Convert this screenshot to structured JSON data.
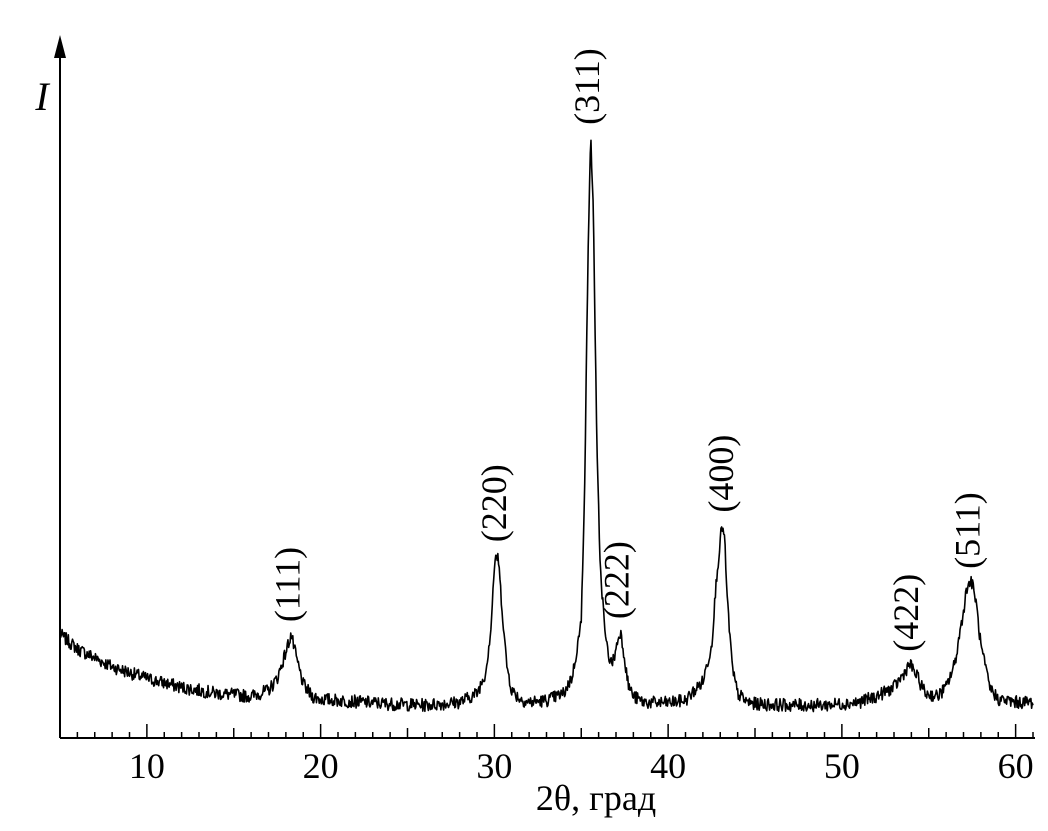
{
  "chart_data": {
    "type": "line",
    "title": "",
    "xlabel": "2θ, град",
    "ylabel": "I",
    "xlim": [
      5,
      61
    ],
    "ylim": [
      0,
      1
    ],
    "x_ticks": [
      10,
      20,
      30,
      40,
      50,
      60
    ],
    "y_ticks": [],
    "grid": false,
    "legend": "none",
    "line_color": "#000000",
    "series": [
      {
        "x": [
          5,
          6,
          8,
          10,
          12,
          14,
          16,
          17,
          17.5,
          18,
          18.3,
          18.6,
          19,
          19.5,
          20,
          22,
          24,
          26,
          28,
          29,
          29.5,
          29.8,
          30.0,
          30.2,
          30.4,
          30.7,
          31,
          31.5,
          32,
          33,
          34,
          34.5,
          35,
          35.2,
          35.4,
          35.55,
          35.7,
          35.9,
          36.1,
          36.4,
          36.7,
          36.9,
          37.1,
          37.25,
          37.4,
          37.7,
          38,
          38.5,
          39,
          40,
          41,
          42,
          42.5,
          42.8,
          43.1,
          43.25,
          43.4,
          43.7,
          44,
          44.5,
          45,
          47,
          49,
          51,
          52,
          53,
          53.5,
          53.9,
          54.3,
          54.8,
          55.5,
          56,
          56.5,
          57,
          57.2,
          57.45,
          57.7,
          58,
          58.5,
          59,
          60,
          61
        ],
        "y": [
          0.14,
          0.115,
          0.085,
          0.065,
          0.05,
          0.04,
          0.035,
          0.045,
          0.065,
          0.11,
          0.14,
          0.1,
          0.055,
          0.035,
          0.03,
          0.026,
          0.022,
          0.02,
          0.025,
          0.04,
          0.075,
          0.15,
          0.255,
          0.275,
          0.2,
          0.09,
          0.045,
          0.03,
          0.025,
          0.028,
          0.04,
          0.07,
          0.16,
          0.4,
          0.8,
          0.98,
          0.85,
          0.45,
          0.25,
          0.13,
          0.09,
          0.1,
          0.13,
          0.145,
          0.12,
          0.055,
          0.035,
          0.026,
          0.024,
          0.024,
          0.028,
          0.06,
          0.12,
          0.24,
          0.325,
          0.3,
          0.2,
          0.08,
          0.04,
          0.026,
          0.022,
          0.02,
          0.02,
          0.025,
          0.035,
          0.05,
          0.07,
          0.09,
          0.07,
          0.04,
          0.035,
          0.05,
          0.09,
          0.18,
          0.22,
          0.23,
          0.2,
          0.12,
          0.05,
          0.03,
          0.025,
          0.025
        ]
      }
    ],
    "annotations": [
      {
        "text": "(111)",
        "x": 18.3,
        "y": 0.14
      },
      {
        "text": "(220)",
        "x": 30.2,
        "y": 0.275
      },
      {
        "text": "(311)",
        "x": 35.55,
        "y": 0.98
      },
      {
        "text": "(222)",
        "x": 37.25,
        "y": 0.145
      },
      {
        "text": "(400)",
        "x": 43.25,
        "y": 0.325
      },
      {
        "text": "(422)",
        "x": 53.9,
        "y": 0.09
      },
      {
        "text": "(511)",
        "x": 57.45,
        "y": 0.23
      }
    ]
  }
}
